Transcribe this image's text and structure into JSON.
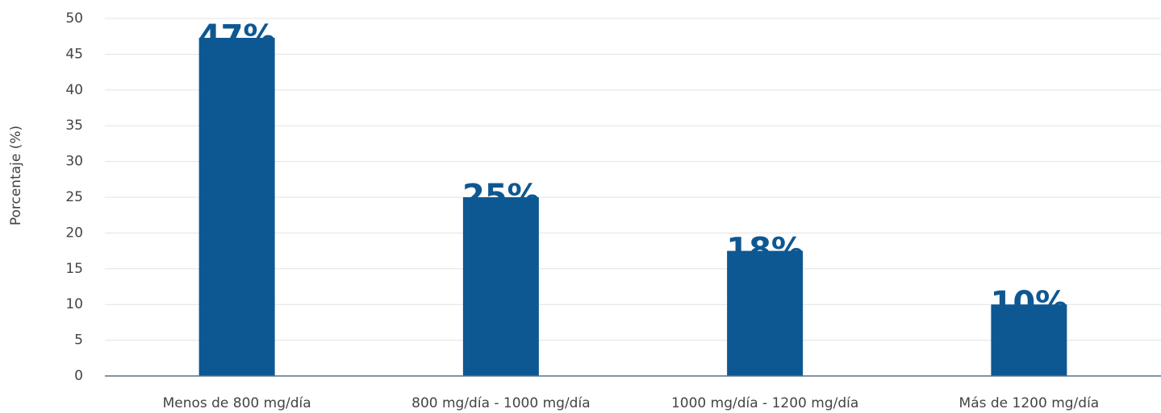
{
  "chart_data": {
    "type": "bar",
    "y_label": "Porcentaje (%)",
    "categories": [
      "Menos de 800 mg/día",
      "800 mg/día - 1000 mg/día",
      "1000 mg/día - 1200 mg/día",
      "Más de 1200 mg/día"
    ],
    "values": [
      47.3,
      25,
      17.5,
      10
    ],
    "value_labels": [
      "47%",
      "25%",
      "18%",
      "10%"
    ],
    "color": "#0d5892",
    "ylim": [
      0,
      50
    ],
    "yticks": [
      0,
      5,
      10,
      15,
      20,
      25,
      30,
      35,
      40,
      45,
      50
    ],
    "grid": true
  }
}
